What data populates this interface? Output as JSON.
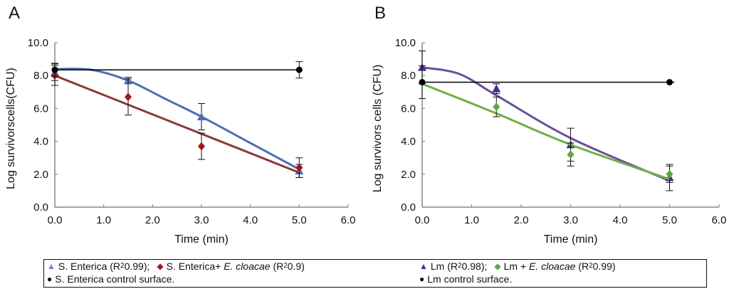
{
  "chart_data": [
    {
      "panel": "A",
      "type": "scatter",
      "xlabel": "Time (min)",
      "ylabel": "Log survivorscells(CFU)",
      "xlim": [
        0,
        6
      ],
      "ylim": [
        0,
        10
      ],
      "xticks": [
        "0.0",
        "1.0",
        "2.0",
        "3.0",
        "4.0",
        "5.0",
        "6.0"
      ],
      "yticks": [
        "0.0",
        "2.0",
        "4.0",
        "6.0",
        "8.0",
        "10.0"
      ],
      "grid": false,
      "series": [
        {
          "name": "S. Enterica",
          "r2": "0.99",
          "marker": "triangle",
          "color": "#4a6fb5",
          "line_color": "#4a6fb5",
          "x": [
            0,
            1.5,
            3,
            5
          ],
          "y": [
            8.2,
            7.7,
            5.5,
            2.2
          ],
          "err": [
            0.5,
            0.2,
            0.8,
            0.4
          ],
          "fit": [
            [
              0,
              8.4
            ],
            [
              0.75,
              8.35
            ],
            [
              1.5,
              7.7
            ],
            [
              2.25,
              6.6
            ],
            [
              3,
              5.5
            ],
            [
              4,
              3.9
            ],
            [
              5,
              2.3
            ]
          ]
        },
        {
          "name": "S. Enterica + E. cloacae",
          "r2": "0.9",
          "marker": "diamond",
          "color": "#a0181e",
          "line_color": "#8b3a35",
          "x": [
            0,
            1.5,
            3,
            5
          ],
          "y": [
            8.0,
            6.7,
            3.7,
            2.4
          ],
          "err": [
            0.6,
            1.1,
            0.8,
            0.6
          ],
          "fit": [
            [
              0,
              8.0
            ],
            [
              5,
              2.1
            ]
          ]
        },
        {
          "name": "S. Enterica control surface.",
          "marker": "circle",
          "color": "#000000",
          "line_color": "#000000",
          "x": [
            0,
            5
          ],
          "y": [
            8.35,
            8.35
          ],
          "err": [
            0.4,
            0.5
          ],
          "fit": [
            [
              0,
              8.35
            ],
            [
              5,
              8.35
            ]
          ]
        }
      ]
    },
    {
      "panel": "B",
      "type": "scatter",
      "xlabel": "Time (min)",
      "ylabel": "Log survivors cells (CFU)",
      "xlim": [
        0,
        6
      ],
      "ylim": [
        0,
        10
      ],
      "xticks": [
        "0.0",
        "1.0",
        "2.0",
        "3.0",
        "4.0",
        "5.0",
        "6.0"
      ],
      "yticks": [
        "0.0",
        "2.0",
        "4.0",
        "6.0",
        "8.0",
        "10.0"
      ],
      "grid": false,
      "series": [
        {
          "name": "Lm",
          "r2": "0.98",
          "marker": "triangle",
          "color": "#4b2a8c",
          "line_color": "#6a4f96",
          "x": [
            0,
            1.5,
            3,
            5
          ],
          "y": [
            8.5,
            7.2,
            3.8,
            1.8
          ],
          "err": [
            1.0,
            0.3,
            1.0,
            0.8
          ],
          "fit": [
            [
              0,
              8.5
            ],
            [
              0.75,
              8.1
            ],
            [
              1.5,
              6.8
            ],
            [
              3,
              4.2
            ],
            [
              5,
              1.6
            ]
          ]
        },
        {
          "name": "Lm + E. cloacae",
          "r2": "0.99",
          "marker": "diamond",
          "color": "#5aa844",
          "line_color": "#6cb043",
          "x": [
            0,
            1.5,
            3,
            5
          ],
          "y": [
            7.6,
            6.1,
            3.2,
            2.0
          ],
          "err": [
            1.0,
            0.6,
            0.7,
            0.5
          ],
          "fit": [
            [
              0,
              7.5
            ],
            [
              1.5,
              5.7
            ],
            [
              3,
              3.8
            ],
            [
              5,
              1.7
            ]
          ]
        },
        {
          "name": "Lm control surface.",
          "marker": "circle",
          "color": "#000000",
          "line_color": "#000000",
          "x": [
            0,
            5
          ],
          "y": [
            7.6,
            7.6
          ],
          "err": [
            0,
            0
          ],
          "fit": [
            [
              0,
              7.6
            ],
            [
              5.1,
              7.6
            ]
          ]
        }
      ]
    }
  ],
  "legend_a": {
    "row1": {
      "s1": "S. Enterica (R",
      "s1_sup": "2",
      "s1_tail": "0.99);",
      "s2": "S. Enterica+",
      "s2_ital": "E. cloacae",
      "s2_r": "(R",
      "s2_sup": "2",
      "s2_tail": "0.9)"
    },
    "row2": "S. Enterica control surface."
  },
  "legend_b": {
    "row1": {
      "s1": "Lm  (R",
      "s1_sup": "2",
      "s1_tail": " 0.98);",
      "s2": "Lm +",
      "s2_ital": "E. cloacae",
      "s2_r": "(R",
      "s2_sup": "2",
      "s2_tail": "0.99)"
    },
    "row2": "Lm control surface."
  }
}
